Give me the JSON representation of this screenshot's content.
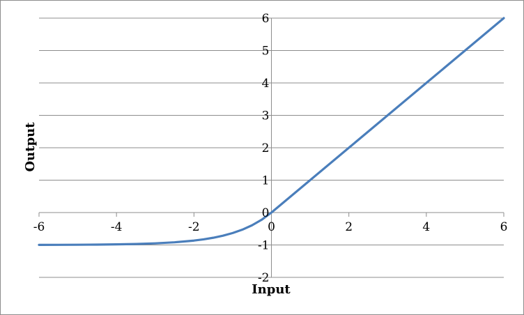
{
  "chart_data": {
    "type": "line",
    "title": "",
    "xlabel": "Input",
    "ylabel": "Output",
    "xlim": [
      -6,
      6
    ],
    "ylim": [
      -2,
      6
    ],
    "x_ticks": [
      -6,
      -4,
      -2,
      0,
      2,
      4,
      6
    ],
    "y_ticks": [
      -2,
      -1,
      0,
      1,
      2,
      3,
      4,
      5,
      6
    ],
    "x_tick_labels": [
      "-6",
      "-4",
      "-2",
      "0",
      "2",
      "4",
      "6"
    ],
    "y_tick_labels": [
      "-2",
      "-1",
      "0",
      "1",
      "2",
      "3",
      "4",
      "5",
      "6"
    ],
    "grid": {
      "horizontal": true,
      "vertical": false
    },
    "legend": "none",
    "series": [
      {
        "color": "#4a7ebb",
        "x": [
          -6,
          -5.5,
          -5,
          -4.5,
          -4,
          -3.5,
          -3,
          -2.5,
          -2,
          -1.75,
          -1.5,
          -1.25,
          -1,
          -0.75,
          -0.5,
          -0.25,
          0,
          0.5,
          1,
          2,
          3,
          4,
          5,
          6
        ],
        "y": [
          -0.998,
          -0.996,
          -0.993,
          -0.989,
          -0.982,
          -0.97,
          -0.95,
          -0.918,
          -0.865,
          -0.826,
          -0.777,
          -0.713,
          -0.632,
          -0.528,
          -0.393,
          -0.221,
          0,
          0.5,
          1,
          2,
          3,
          4,
          5,
          6
        ]
      }
    ]
  }
}
